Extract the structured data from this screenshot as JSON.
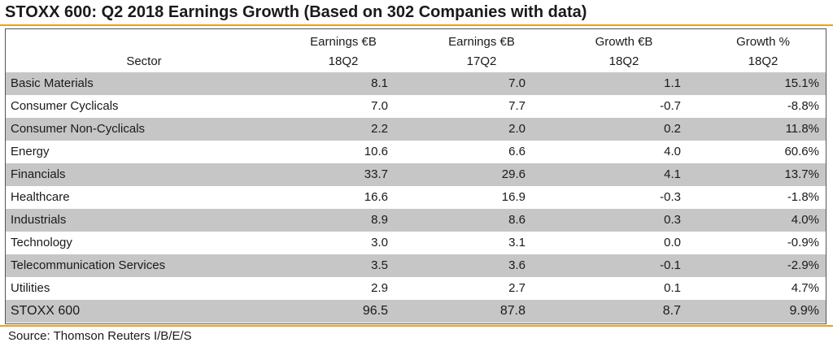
{
  "title": "STOXX 600: Q2 2018 Earnings Growth (Based on 302 Companies with data)",
  "header": {
    "sector": "Sector",
    "col1_line1": "Earnings €B",
    "col1_line2": "18Q2",
    "col2_line1": "Earnings €B",
    "col2_line2": "17Q2",
    "col3_line1": "Growth €B",
    "col3_line2": "18Q2",
    "col4_line1": "Growth %",
    "col4_line2": "18Q2"
  },
  "rows": [
    {
      "sector": "Basic Materials",
      "earn_18q2": "8.1",
      "earn_17q2": "7.0",
      "growth_eur": "1.1",
      "growth_pct": "15.1%"
    },
    {
      "sector": "Consumer Cyclicals",
      "earn_18q2": "7.0",
      "earn_17q2": "7.7",
      "growth_eur": "-0.7",
      "growth_pct": "-8.8%"
    },
    {
      "sector": "Consumer Non-Cyclicals",
      "earn_18q2": "2.2",
      "earn_17q2": "2.0",
      "growth_eur": "0.2",
      "growth_pct": "11.8%"
    },
    {
      "sector": "Energy",
      "earn_18q2": "10.6",
      "earn_17q2": "6.6",
      "growth_eur": "4.0",
      "growth_pct": "60.6%"
    },
    {
      "sector": "Financials",
      "earn_18q2": "33.7",
      "earn_17q2": "29.6",
      "growth_eur": "4.1",
      "growth_pct": "13.7%"
    },
    {
      "sector": "Healthcare",
      "earn_18q2": "16.6",
      "earn_17q2": "16.9",
      "growth_eur": "-0.3",
      "growth_pct": "-1.8%"
    },
    {
      "sector": "Industrials",
      "earn_18q2": "8.9",
      "earn_17q2": "8.6",
      "growth_eur": "0.3",
      "growth_pct": "4.0%"
    },
    {
      "sector": "Technology",
      "earn_18q2": "3.0",
      "earn_17q2": "3.1",
      "growth_eur": "0.0",
      "growth_pct": "-0.9%"
    },
    {
      "sector": "Telecommunication Services",
      "earn_18q2": "3.5",
      "earn_17q2": "3.6",
      "growth_eur": "-0.1",
      "growth_pct": "-2.9%"
    },
    {
      "sector": "Utilities",
      "earn_18q2": "2.9",
      "earn_17q2": "2.7",
      "growth_eur": "0.1",
      "growth_pct": "4.7%"
    }
  ],
  "total": {
    "sector": "STOXX 600",
    "earn_18q2": "96.5",
    "earn_17q2": "87.8",
    "growth_eur": "8.7",
    "growth_pct": "9.9%"
  },
  "source": "Source: Thomson Reuters I/B/E/S",
  "colors": {
    "accent_rule": "#e8a020",
    "row_shade": "#c6c6c6"
  }
}
